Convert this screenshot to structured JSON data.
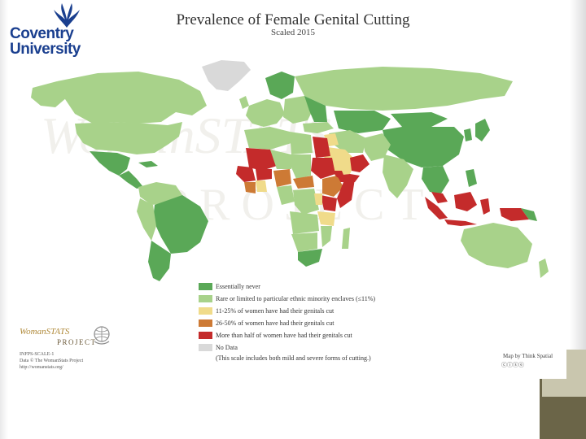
{
  "slide": {
    "university_name": "Coventry University"
  },
  "map": {
    "title": "Prevalence of Female Genital Cutting",
    "subtitle": "Scaled 2015",
    "colors": {
      "never": "#5aa857",
      "rare": "#a8d28a",
      "low": "#f0db8a",
      "mid": "#cd7a35",
      "high": "#c42b2b",
      "nodata": "#d9d9d9",
      "ocean": "#ffffff"
    },
    "legend": [
      {
        "color": "#5aa857",
        "label": "Essentially never"
      },
      {
        "color": "#a8d28a",
        "label": "Rare or limited to particular ethnic minority enclaves (≤11%)"
      },
      {
        "color": "#f0db8a",
        "label": "11-25% of women have had their genitals cut"
      },
      {
        "color": "#cd7a35",
        "label": "26-50% of women have had their genitals cut"
      },
      {
        "color": "#c42b2b",
        "label": "More than half of women have had their genitals cut"
      },
      {
        "color": "#d9d9d9",
        "label": "No Data"
      }
    ],
    "legend_note": "(This scale includes both mild and severe forms of cutting.)",
    "watermark_line1": "WomanSTATS",
    "watermark_line2": "PROJECT",
    "source_line1": "INFPS-SCALE-1",
    "source_line2": "Data © The WomanStats Project",
    "source_line3": "http://womanstats.org/",
    "credit": "Map by Think Spatial",
    "cc_icons": "ⓒⓘⓢⓔ"
  },
  "womanstats_logo": {
    "top": "WomanSTATS",
    "bottom": "PROJECT"
  }
}
